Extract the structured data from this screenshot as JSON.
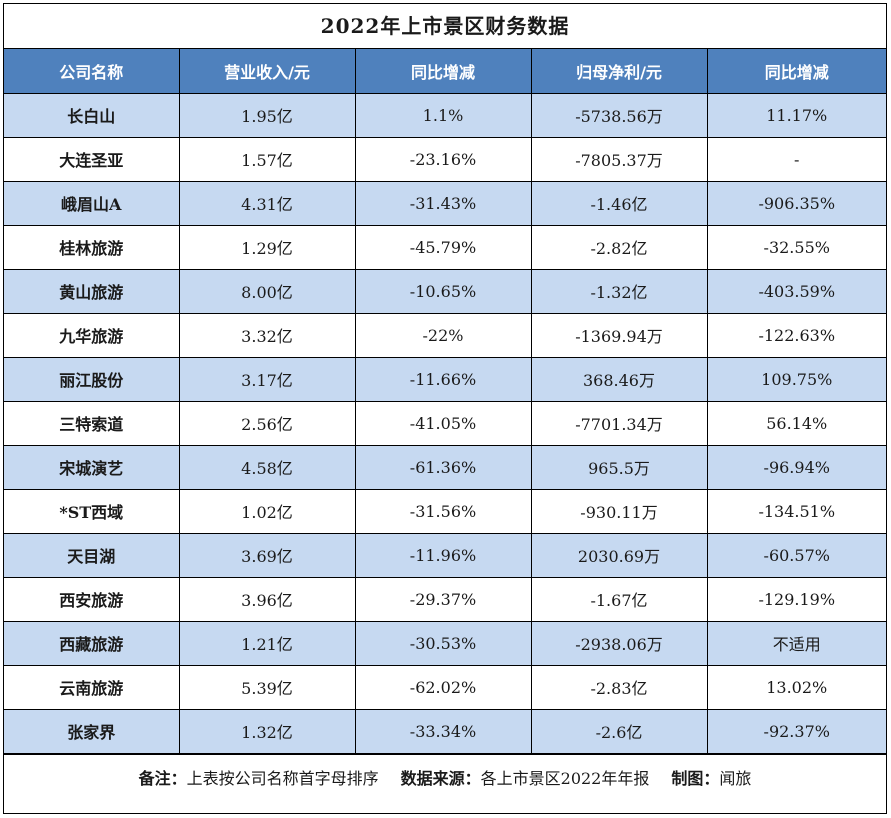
{
  "title": "2022年上市景区财务数据",
  "columns": [
    "公司名称",
    "营业收入/元",
    "同比增减",
    "归母净利/元",
    "同比增减"
  ],
  "rows": [
    [
      "长白山",
      "1.95亿",
      "1.1%",
      "-5738.56万",
      "11.17%"
    ],
    [
      "大连圣亚",
      "1.57亿",
      "-23.16%",
      "-7805.37万",
      "-"
    ],
    [
      "峨眉山A",
      "4.31亿",
      "-31.43%",
      "-1.46亿",
      "-906.35%"
    ],
    [
      "桂林旅游",
      "1.29亿",
      "-45.79%",
      "-2.82亿",
      "-32.55%"
    ],
    [
      "黄山旅游",
      "8.00亿",
      "-10.65%",
      "-1.32亿",
      "-403.59%"
    ],
    [
      "九华旅游",
      "3.32亿",
      "-22%",
      "-1369.94万",
      "-122.63%"
    ],
    [
      "丽江股份",
      "3.17亿",
      "-11.66%",
      "368.46万",
      "109.75%"
    ],
    [
      "三特索道",
      "2.56亿",
      "-41.05%",
      "-7701.34万",
      "56.14%"
    ],
    [
      "宋城演艺",
      "4.58亿",
      "-61.36%",
      "965.5万",
      "-96.94%"
    ],
    [
      "*ST西域",
      "1.02亿",
      "-31.56%",
      "-930.11万",
      "-134.51%"
    ],
    [
      "天目湖",
      "3.69亿",
      "-11.96%",
      "2030.69万",
      "-60.57%"
    ],
    [
      "西安旅游",
      "3.96亿",
      "-29.37%",
      "-1.67亿",
      "-129.19%"
    ],
    [
      "西藏旅游",
      "1.21亿",
      "-30.53%",
      "-2938.06万",
      "不适用"
    ],
    [
      "云南旅游",
      "5.39亿",
      "-62.02%",
      "-2.83亿",
      "13.02%"
    ],
    [
      "张家界",
      "1.32亿",
      "-33.34%",
      "-2.6亿",
      "-92.37%"
    ]
  ],
  "footer": {
    "note_label": "备注：",
    "note_text": "上表按公司名称首字母排序",
    "source_label": "数据来源：",
    "source_text": "各上市景区2022年年报",
    "author_label": "制图：",
    "author_text": "闻旅"
  },
  "colors": {
    "header_bg": "#4f81bd",
    "header_text": "#ffffff",
    "row_band": "#c6d9f1",
    "row_plain": "#ffffff"
  }
}
